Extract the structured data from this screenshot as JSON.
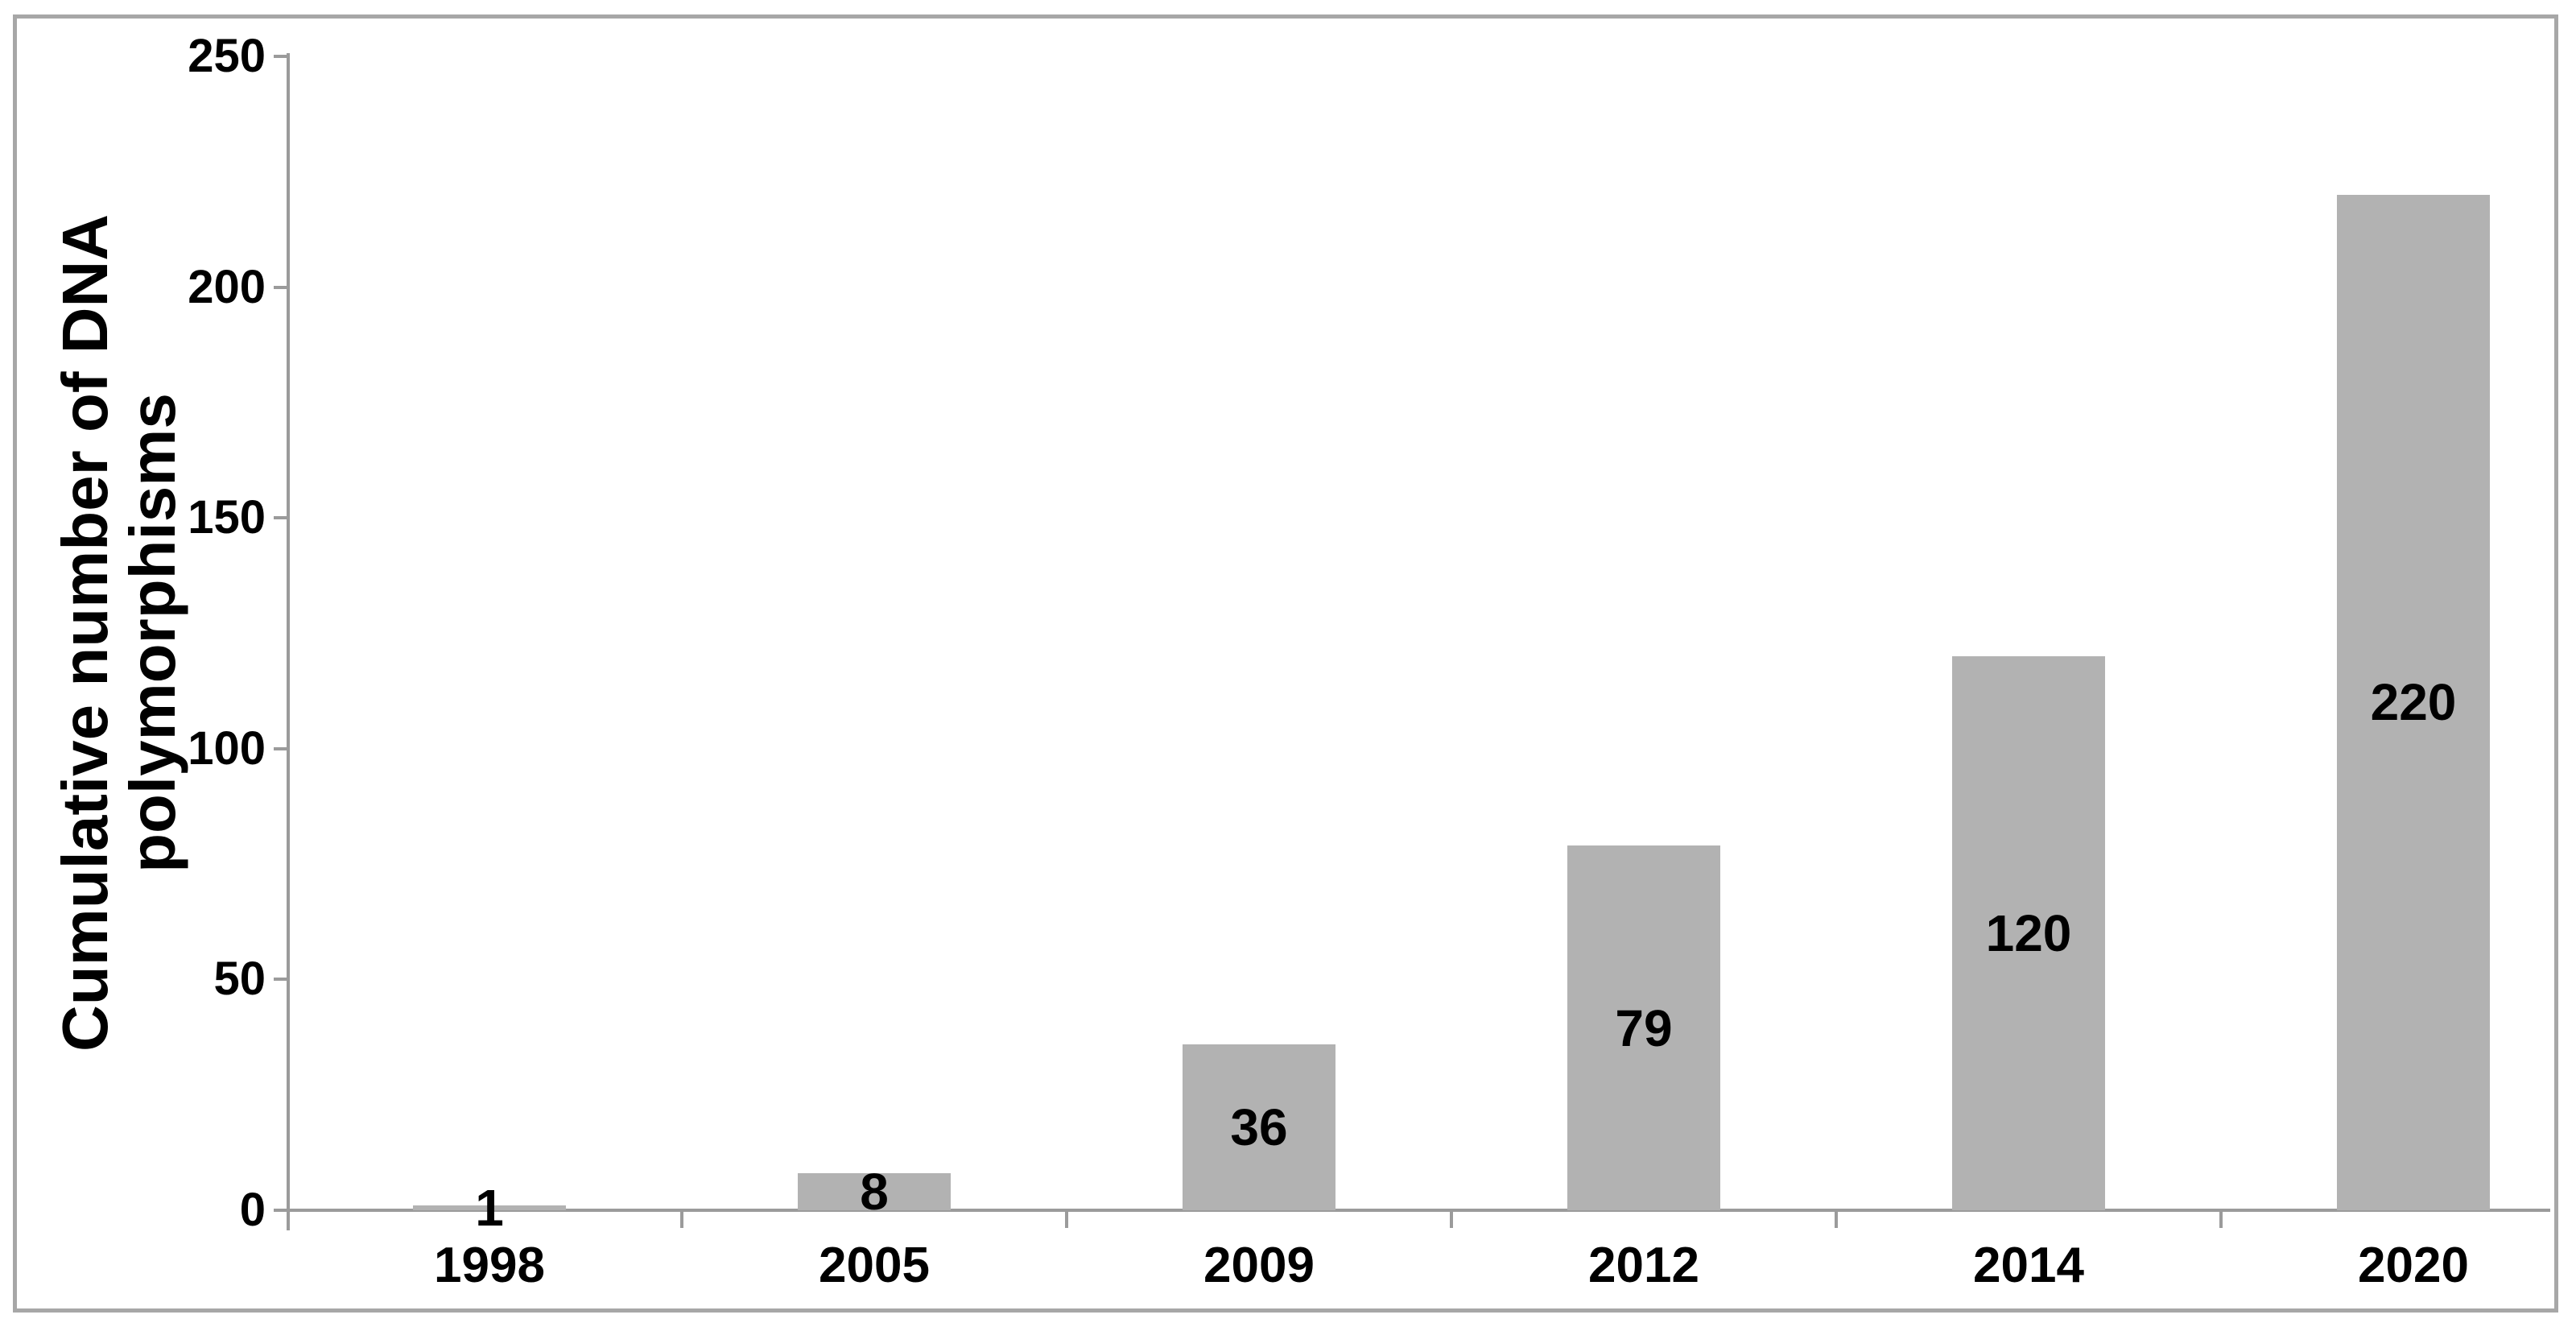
{
  "figure": {
    "background": "#ffffff",
    "frame_color": "#a7a7a7"
  },
  "chart_data": {
    "type": "bar",
    "title": "",
    "categories": [
      "1998",
      "2005",
      "2009",
      "2012",
      "2014",
      "2020"
    ],
    "values": [
      1,
      8,
      36,
      79,
      120,
      220
    ],
    "data_labels": [
      "1",
      "8",
      "36",
      "79",
      "120",
      "220"
    ],
    "series": [
      {
        "name": "Cumulative number of DNA polymorphisms",
        "values": [
          1,
          8,
          36,
          79,
          120,
          220
        ]
      }
    ],
    "xlabel": "",
    "ylabel": "Cumulative number of DNA polymorphisms",
    "ylabel_lines": [
      "Cumulative number of DNA",
      "polymorphisms"
    ],
    "ylim": [
      0,
      250
    ],
    "yticks": [
      "0",
      "50",
      "100",
      "150",
      "200",
      "250"
    ],
    "ytick_values": [
      0,
      50,
      100,
      150,
      200,
      250
    ],
    "grid": "off",
    "legend": "none",
    "bar_color": "#b2b2b2",
    "axis_color": "#9b9b9b",
    "text_color": "#000000",
    "data_label_position": "center"
  }
}
